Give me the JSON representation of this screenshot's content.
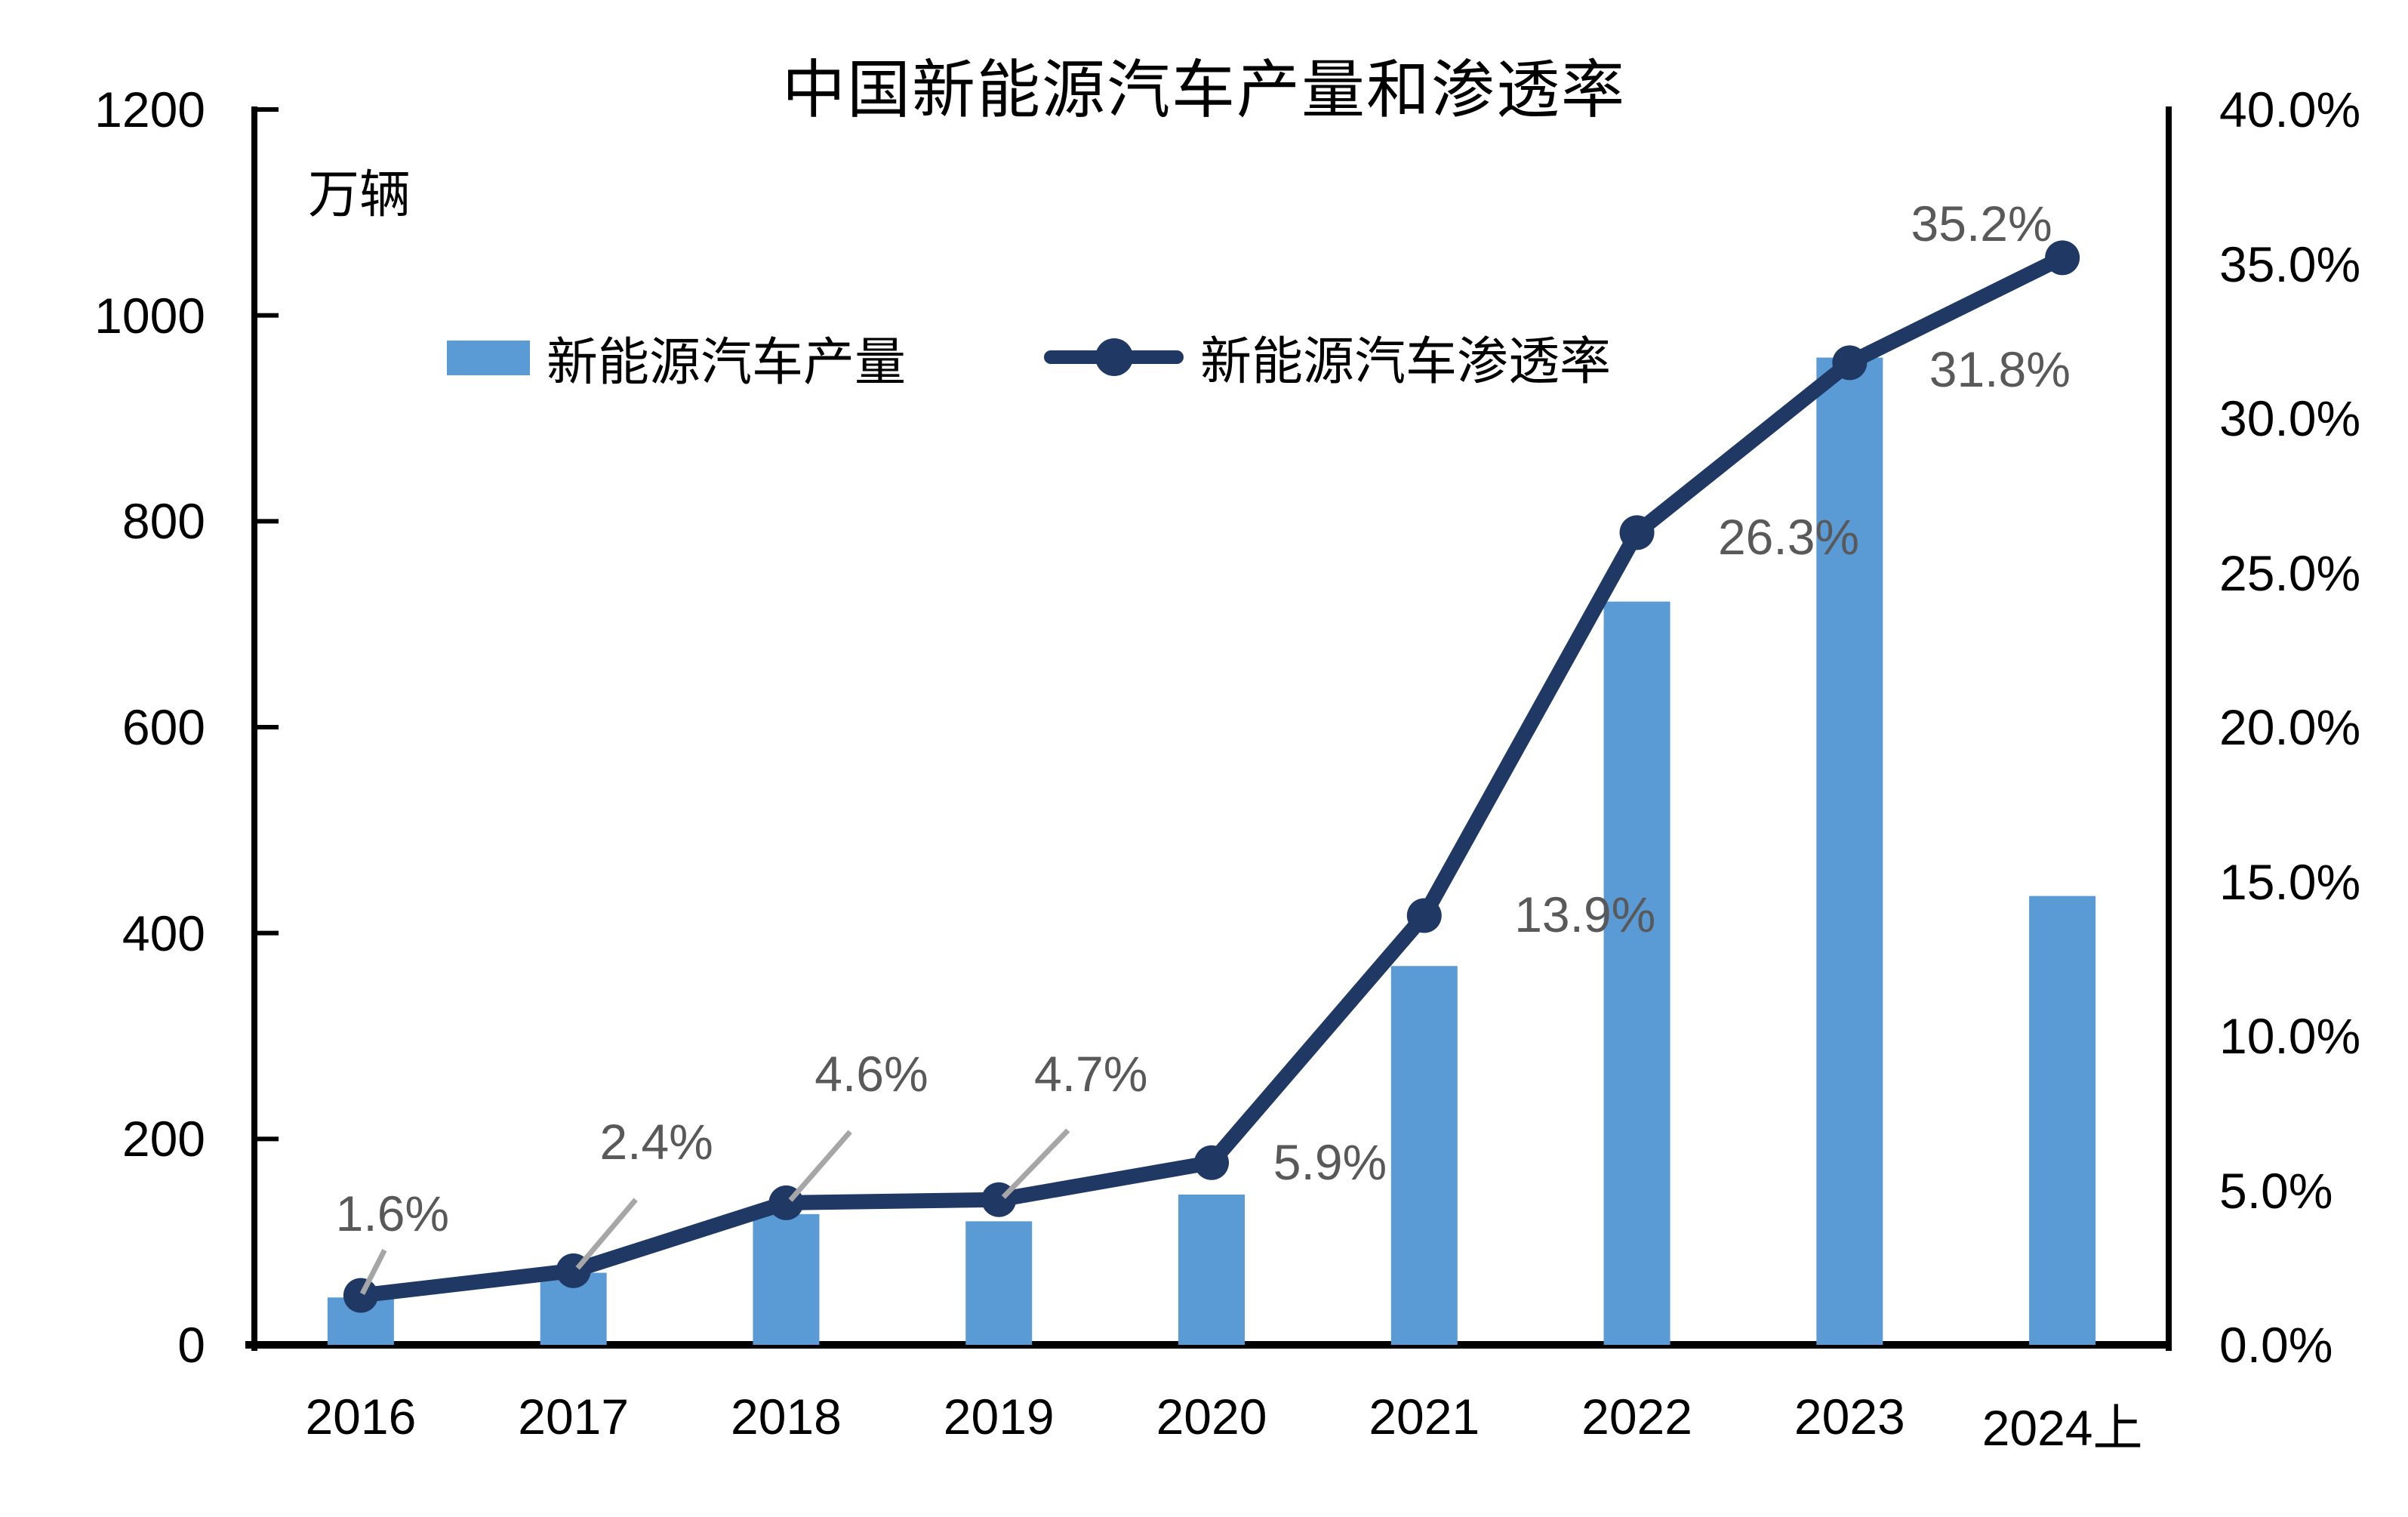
{
  "title": "中国新能源汽车产量和渗透率",
  "unit_label": "万辆",
  "legend": {
    "production_label": "新能源汽车产量",
    "penetration_label": "新能源汽车渗透率"
  },
  "colors": {
    "bar": "#5B9BD5",
    "line": "#1F3864",
    "data_label": "#595959",
    "leader_line": "#A6A6A6",
    "axis": "#000000",
    "background": "#FFFFFF"
  },
  "chart_data": {
    "type": "bar",
    "subtype": "combo-bar-line-dual-axis",
    "title": "中国新能源汽车产量和渗透率",
    "categories": [
      "2016",
      "2017",
      "2018",
      "2019",
      "2020",
      "2021",
      "2022",
      "2023",
      "2024上"
    ],
    "series": [
      {
        "name": "新能源汽车产量",
        "type": "bar",
        "axis": "left",
        "unit": "万辆",
        "values": [
          46,
          70,
          127,
          120,
          146,
          368,
          722,
          959,
          436
        ],
        "note": "bar heights read from pixels; no numeric labels printed on bars"
      },
      {
        "name": "新能源汽车渗透率",
        "type": "line",
        "axis": "right",
        "unit": "%",
        "values": [
          1.6,
          2.4,
          4.6,
          4.7,
          5.9,
          13.9,
          26.3,
          31.8,
          35.2
        ],
        "point_labels": [
          "1.6%",
          "2.4%",
          "4.6%",
          "4.7%",
          "5.9%",
          "13.9%",
          "26.3%",
          "31.8%",
          "35.2%"
        ]
      }
    ],
    "left_axis": {
      "label": "万辆",
      "min": 0,
      "max": 1200,
      "step": 200,
      "tick_labels": [
        "0",
        "200",
        "400",
        "600",
        "800",
        "1000",
        "1200"
      ]
    },
    "right_axis": {
      "min": 0,
      "max": 40,
      "step": 5,
      "tick_labels": [
        "0.0%",
        "5.0%",
        "10.0%",
        "15.0%",
        "20.0%",
        "25.0%",
        "30.0%",
        "35.0%",
        "40.0%"
      ]
    },
    "grid": false,
    "legend_position": "top-inside"
  }
}
